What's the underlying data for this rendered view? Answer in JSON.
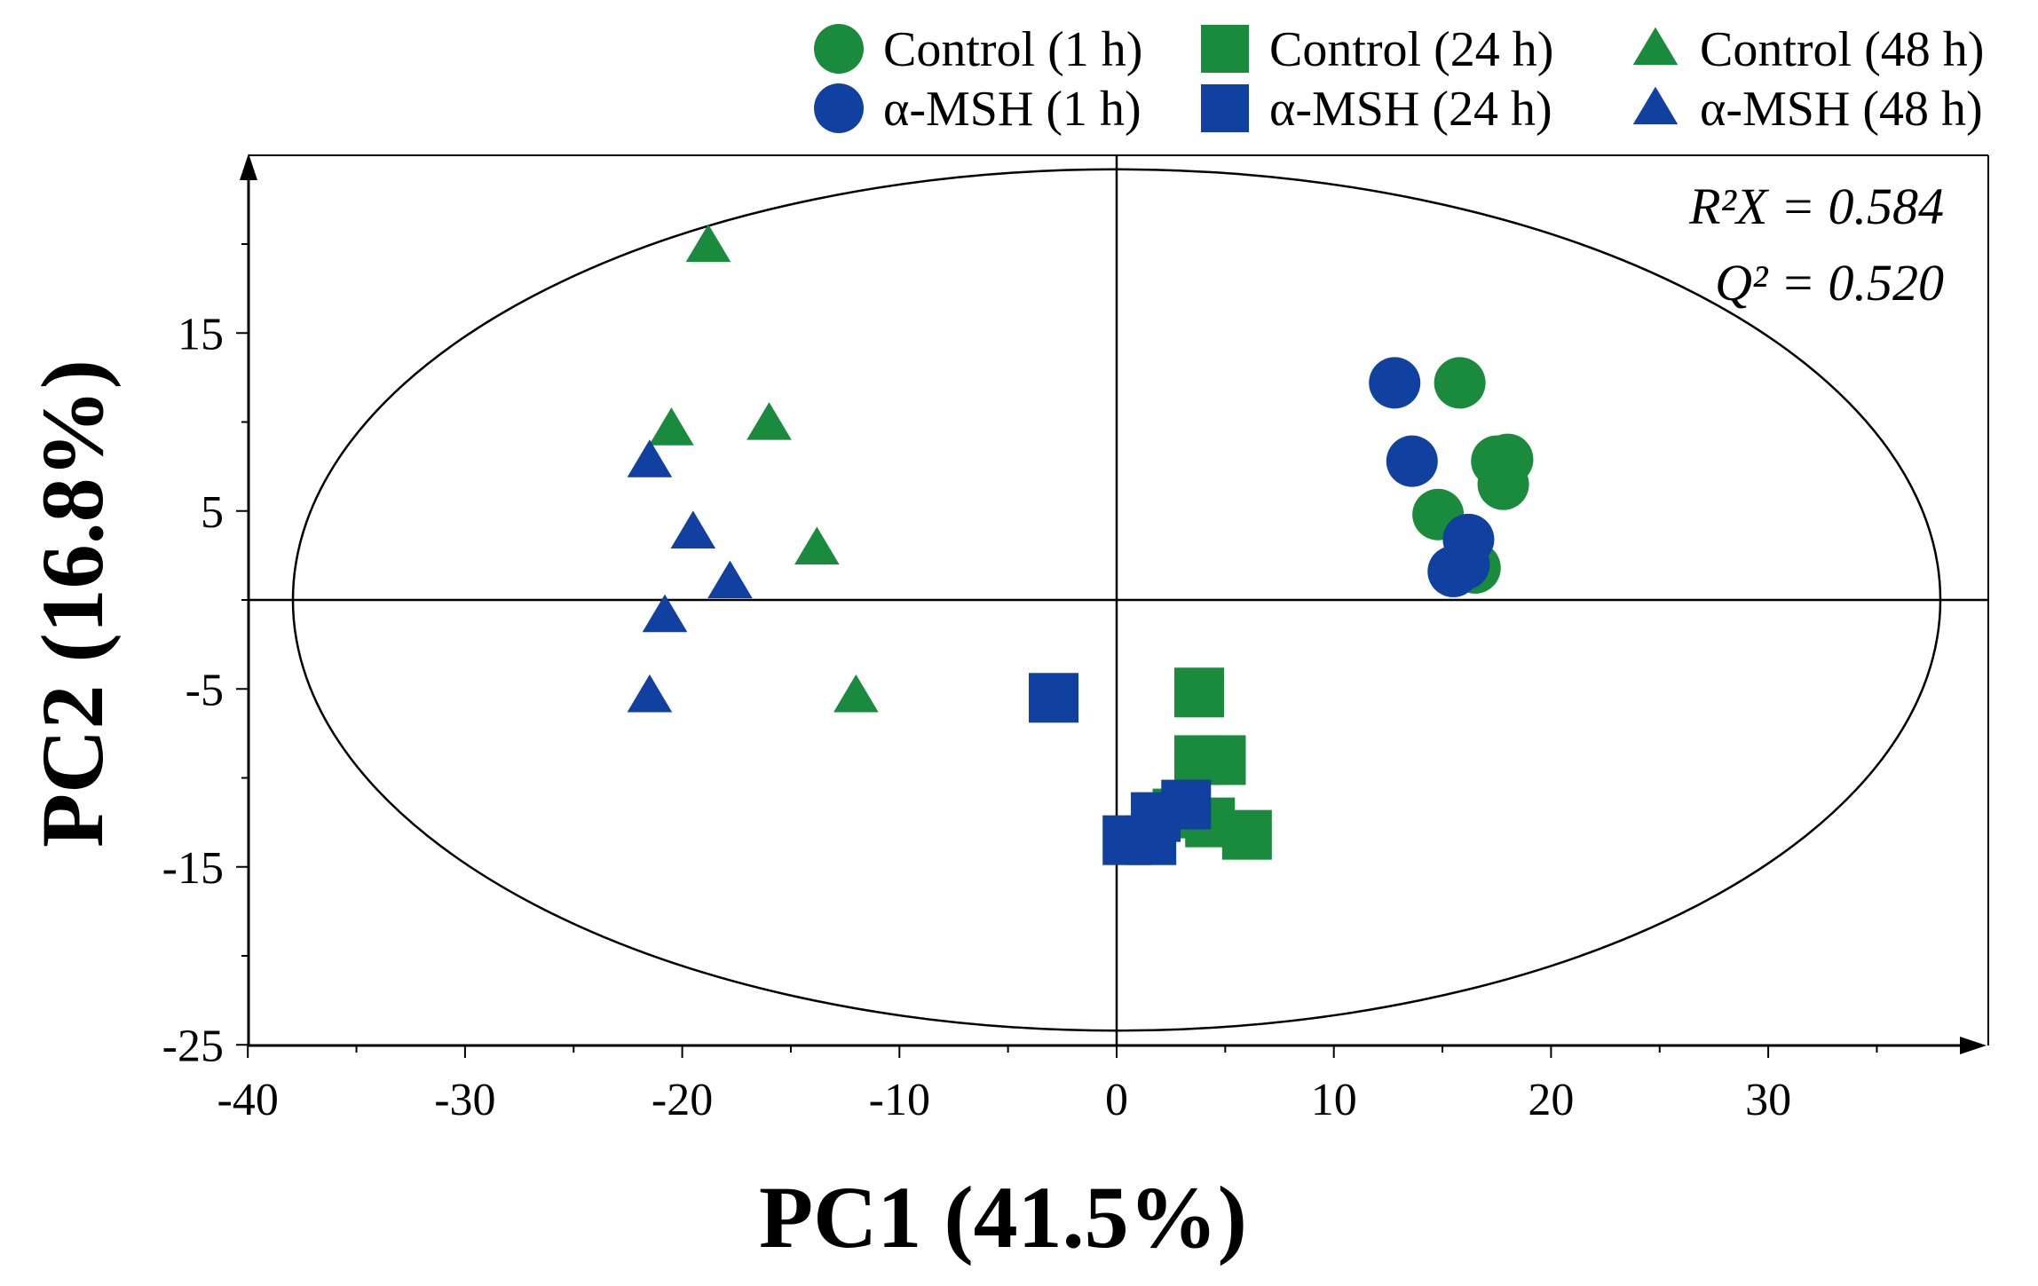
{
  "chart_data": {
    "type": "scatter",
    "xlabel": "PC1 (41.5%)",
    "ylabel": "PC2 (16.8%)",
    "xlim": [
      -40,
      40
    ],
    "ylim": [
      -25,
      25
    ],
    "xticks": [
      -40,
      -30,
      -20,
      -10,
      0,
      10,
      20,
      30
    ],
    "yticks": [
      15,
      5,
      -5,
      -15,
      -25
    ],
    "stats": {
      "r2x": "R²X = 0.584",
      "q2": "Q² = 0.520"
    },
    "ellipse": {
      "cx": 0,
      "cy": 0,
      "rx": 38,
      "ry": 24.2
    },
    "colors": {
      "control": "#1a8a3c",
      "msh": "#1040a0"
    },
    "series": [
      {
        "name": "Control (1 h)",
        "group": "control",
        "shape": "circle",
        "points": [
          [
            15.8,
            12.2
          ],
          [
            17.5,
            7.8
          ],
          [
            18.0,
            7.9
          ],
          [
            17.8,
            6.5
          ],
          [
            14.8,
            4.8
          ],
          [
            16.5,
            1.8
          ]
        ]
      },
      {
        "name": "Control (24 h)",
        "group": "control",
        "shape": "square",
        "points": [
          [
            3.8,
            -5.2
          ],
          [
            3.8,
            -9.0
          ],
          [
            4.8,
            -9.0
          ],
          [
            4.3,
            -12.5
          ],
          [
            6.0,
            -13.2
          ],
          [
            2.8,
            -12.0
          ]
        ]
      },
      {
        "name": "Control (48 h)",
        "group": "control",
        "shape": "triangle",
        "points": [
          [
            -18.8,
            19.8
          ],
          [
            -20.5,
            9.5
          ],
          [
            -16.0,
            9.8
          ],
          [
            -13.8,
            2.8
          ],
          [
            -12.0,
            -5.5
          ]
        ]
      },
      {
        "name": "α-MSH (1 h)",
        "group": "msh",
        "shape": "circle",
        "points": [
          [
            12.8,
            12.2
          ],
          [
            13.6,
            7.8
          ],
          [
            16.2,
            3.4
          ],
          [
            16.0,
            2.0
          ],
          [
            15.5,
            1.6
          ]
        ]
      },
      {
        "name": "α-MSH (24 h)",
        "group": "msh",
        "shape": "square",
        "points": [
          [
            -2.9,
            -5.5
          ],
          [
            3.2,
            -11.5
          ],
          [
            1.8,
            -12.2
          ],
          [
            0.5,
            -13.5
          ],
          [
            1.6,
            -13.5
          ]
        ]
      },
      {
        "name": "α-MSH (48 h)",
        "group": "msh",
        "shape": "triangle",
        "points": [
          [
            -21.5,
            7.7
          ],
          [
            -19.5,
            3.7
          ],
          [
            -17.8,
            0.9
          ],
          [
            -20.8,
            -1.0
          ],
          [
            -21.5,
            -5.5
          ]
        ]
      }
    ]
  }
}
